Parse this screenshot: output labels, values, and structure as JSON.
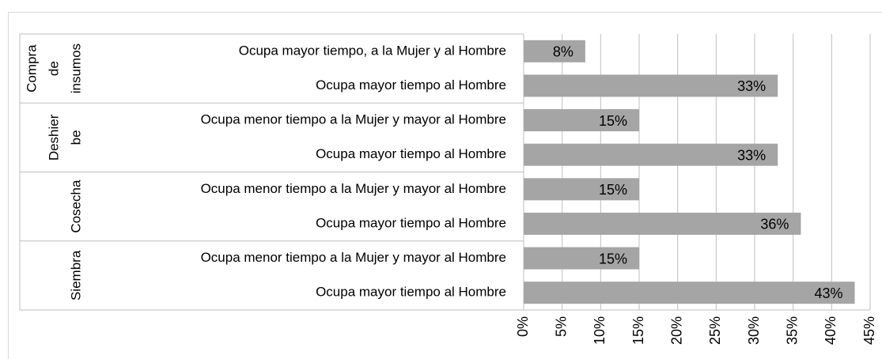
{
  "chart_data": {
    "type": "bar",
    "orientation": "horizontal",
    "groups": [
      [
        "Compra",
        "de",
        "insumos"
      ],
      [
        "Deshier",
        "be"
      ],
      [
        "Cosecha"
      ],
      [
        "Siembra"
      ]
    ],
    "categories": [
      "Ocupa mayor tiempo, a la Mujer y al Hombre",
      "Ocupa mayor tiempo al Hombre",
      "Ocupa menor tiempo a la Mujer y mayor al Hombre",
      "Ocupa mayor tiempo al Hombre",
      "Ocupa menor tiempo a la Mujer y mayor al Hombre",
      "Ocupa mayor tiempo al Hombre",
      "Ocupa menor tiempo a la Mujer y mayor al Hombre",
      "Ocupa mayor tiempo al Hombre"
    ],
    "values": [
      8,
      33,
      15,
      33,
      15,
      36,
      15,
      43
    ],
    "value_labels": [
      "8%",
      "33%",
      "15%",
      "33%",
      "15%",
      "36%",
      "15%",
      "43%"
    ],
    "color": "#a5a5a5",
    "xlim": [
      0,
      45
    ],
    "xticks": [
      {
        "value": 0,
        "label": "0%"
      },
      {
        "value": 5,
        "label": "5%"
      },
      {
        "value": 10,
        "label": "10%"
      },
      {
        "value": 15,
        "label": "15%"
      },
      {
        "value": 20,
        "label": "20%"
      },
      {
        "value": 25,
        "label": "25%"
      },
      {
        "value": 30,
        "label": "30%"
      },
      {
        "value": 35,
        "label": "35%"
      },
      {
        "value": 40,
        "label": "40%"
      },
      {
        "value": 45,
        "label": "45%"
      }
    ],
    "grid": true
  }
}
